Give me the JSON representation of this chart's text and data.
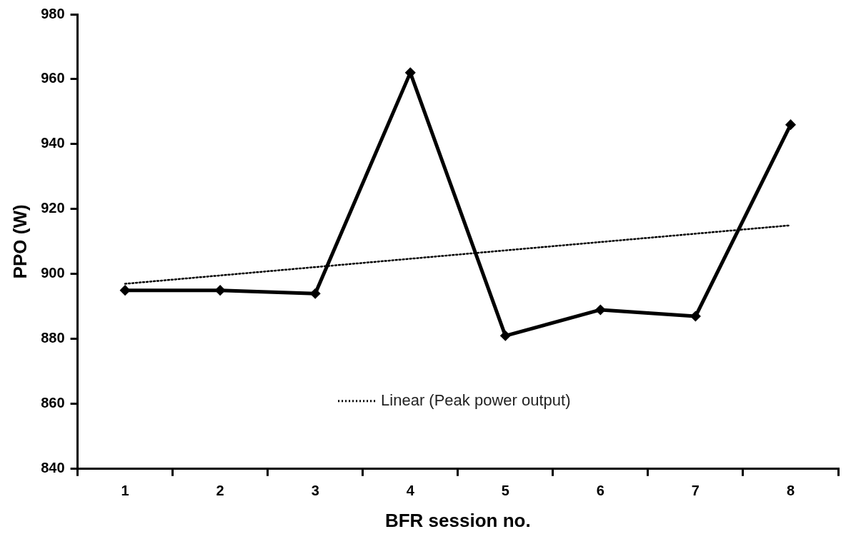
{
  "chart_data": {
    "type": "line",
    "xlabel": "BFR session no.",
    "ylabel": "PPO (W)",
    "categories": [
      "1",
      "2",
      "3",
      "4",
      "5",
      "6",
      "7",
      "8"
    ],
    "series": [
      {
        "color": "#000000",
        "values": [
          895,
          895,
          894,
          962,
          881,
          889,
          887,
          946
        ],
        "marker": "diamond",
        "line_style": "solid"
      },
      {
        "name": "Linear (Peak power output)",
        "color": "#000000",
        "x": [
          "1",
          "8"
        ],
        "values": [
          897,
          915
        ],
        "marker": "none",
        "line_style": "dotted"
      }
    ],
    "ylim": [
      840,
      980
    ],
    "yticks": [
      840,
      860,
      880,
      900,
      920,
      940,
      960,
      980
    ],
    "grid": false,
    "legend": "bottom"
  }
}
